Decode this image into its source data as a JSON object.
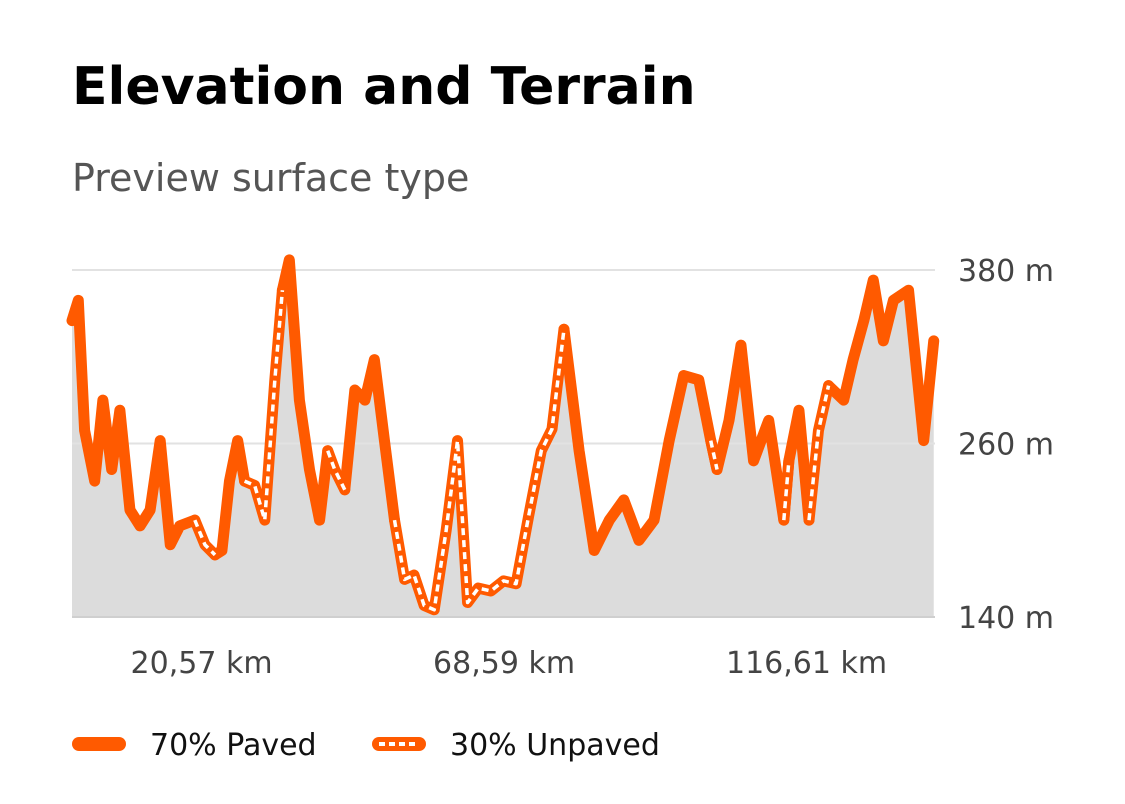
{
  "chart_data": {
    "type": "line",
    "title": "Elevation and Terrain",
    "subtitle": "Preview surface type",
    "x": [
      0,
      1,
      2,
      3.6,
      4.9,
      6.3,
      7.6,
      9.2,
      10.8,
      12.4,
      14,
      15.6,
      17.1,
      19.5,
      21.1,
      22.7,
      23.8,
      25,
      26.3,
      27.4,
      29,
      30.6,
      32.2,
      33.4,
      34.5,
      36.1,
      37.7,
      39.3,
      40.6,
      41.7,
      43.3,
      44.9,
      46.5,
      48,
      49.6,
      51.2,
      52.8,
      54.3,
      55.9,
      57.5,
      59.4,
      61.2,
      62.8,
      64.5,
      66.5,
      68.5,
      70.5,
      72.5,
      74.5,
      76.2,
      78.1,
      80.5,
      82.9,
      85.3,
      87.6,
      90,
      92.4,
      94.8,
      97.1,
      99.5,
      101.4,
      102.4,
      104.3,
      106.2,
      108.2,
      110.6,
      113,
      113.8,
      115.4,
      117,
      118.5,
      120.1,
      122.5,
      124,
      125.7,
      127.2,
      128.8,
      130.4,
      132.8,
      135.2,
      136.8
    ],
    "series": [
      {
        "name": "70% Paved",
        "color": "#ff5a00",
        "style": "solid",
        "values": [
          345,
          359,
          269,
          234,
          290,
          242,
          283,
          214,
          203,
          214,
          262,
          190,
          203,
          207,
          null,
          183,
          186,
          234,
          262,
          234,
          null,
          null,
          null,
          366,
          387,
          290,
          242,
          207,
          255,
          null,
          228,
          297,
          290,
          318,
          262,
          207,
          null,
          null,
          null,
          null,
          null,
          null,
          null,
          null,
          null,
          null,
          null,
          null,
          null,
          null,
          339,
          255,
          186,
          207,
          221,
          193,
          207,
          262,
          307,
          304,
          262,
          242,
          276,
          328,
          248,
          276,
          207,
          248,
          283,
          207,
          null,
          300,
          290,
          318,
          345,
          373,
          331,
          359,
          366,
          262,
          331
        ]
      },
      {
        "name": "30% Unpaved",
        "color": "#ff5a00",
        "style": "dashed",
        "values": [
          null,
          null,
          null,
          null,
          null,
          null,
          null,
          null,
          null,
          null,
          null,
          null,
          null,
          207,
          190,
          183,
          null,
          null,
          null,
          234,
          231,
          207,
          304,
          366,
          null,
          null,
          null,
          null,
          255,
          242,
          228,
          null,
          null,
          null,
          null,
          207,
          166,
          169,
          148,
          145,
          200,
          262,
          150,
          160,
          158,
          165,
          163,
          210,
          255,
          270,
          339,
          null,
          null,
          null,
          null,
          null,
          null,
          null,
          null,
          null,
          262,
          242,
          null,
          null,
          null,
          null,
          207,
          248,
          null,
          207,
          269,
          300,
          null,
          null,
          null,
          null,
          null,
          null,
          null,
          null,
          null
        ]
      }
    ],
    "area_color": "#dcdcdc",
    "xlim": [
      0,
      137
    ],
    "xticks": [
      {
        "value": 20.57,
        "label": "20,57 km"
      },
      {
        "value": 68.59,
        "label": "68,59 km"
      },
      {
        "value": 116.61,
        "label": "116,61 km"
      }
    ],
    "ylim": [
      140,
      380
    ],
    "yticks": [
      {
        "value": 140,
        "label": "140 m"
      },
      {
        "value": 260,
        "label": "260 m"
      },
      {
        "value": 380,
        "label": "380 m"
      }
    ],
    "grid": true
  }
}
